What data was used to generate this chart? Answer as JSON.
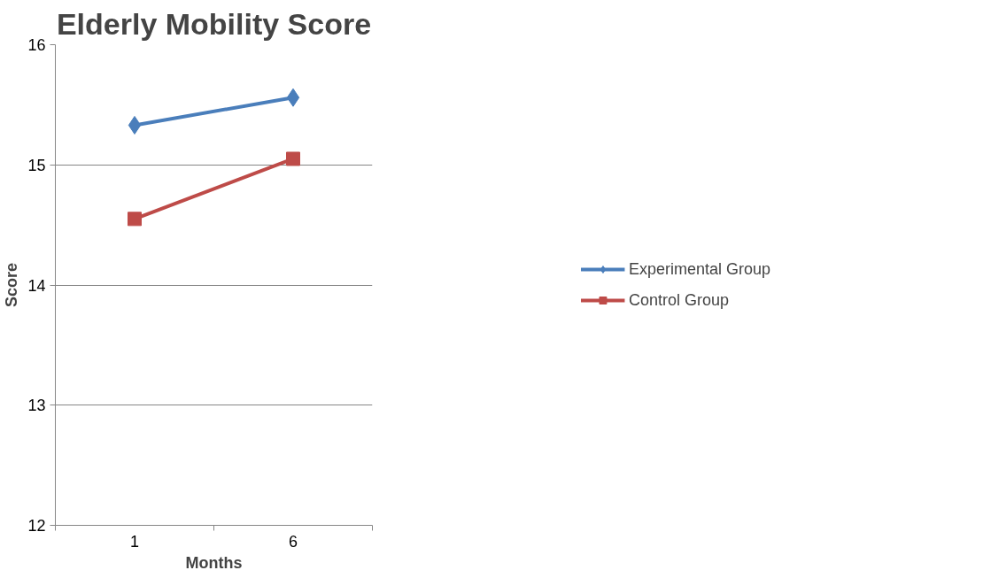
{
  "chart_data": {
    "type": "line",
    "title": "Elderly Mobility Score",
    "xlabel": "Months",
    "ylabel": "Score",
    "categories": [
      "1",
      "6"
    ],
    "series": [
      {
        "name": "Experimental Group",
        "color": "#4a7ebb",
        "marker": "diamond",
        "values": [
          15.33,
          15.56
        ]
      },
      {
        "name": "Control Group",
        "color": "#be4b48",
        "marker": "square",
        "values": [
          14.55,
          15.05
        ]
      }
    ],
    "ylim": [
      12,
      16
    ],
    "yticks": [
      12,
      13,
      14,
      15,
      16
    ],
    "grid": "y",
    "legend": "right",
    "line_style": "solid"
  }
}
